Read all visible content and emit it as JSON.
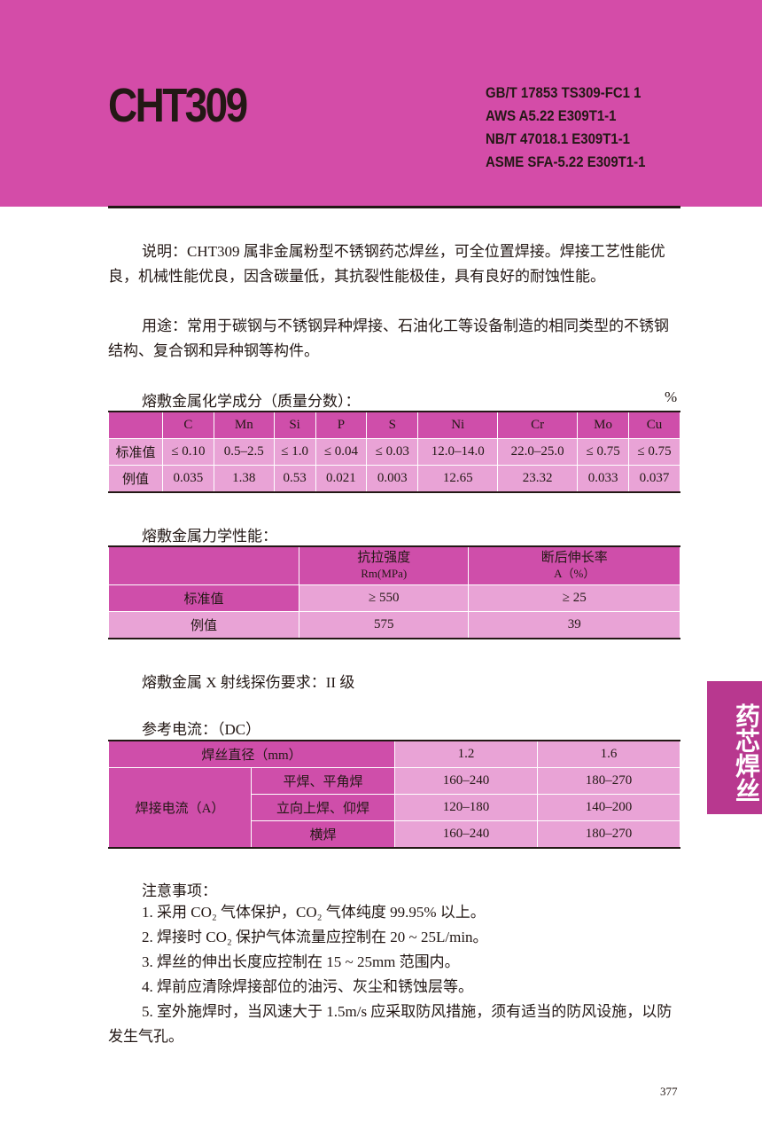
{
  "header": {
    "title": "CHT309",
    "standards": [
      "GB/T 17853 TS309-FC1 1",
      "AWS A5.22 E309T1-1",
      "NB/T 47018.1 E309T1-1",
      "ASME SFA-5.22 E309T1-1"
    ]
  },
  "description": {
    "label": "说明：",
    "text": "CHT309 属非金属粉型不锈钢药芯焊丝，可全位置焊接。焊接工艺性能优良，机械性能优良，因含碳量低，其抗裂性能极佳，具有良好的耐蚀性能。"
  },
  "usage": {
    "label": "用途：",
    "text": "常用于碳钢与不锈钢异种焊接、石油化工等设备制造的相同类型的不锈钢结构、复合钢和异种钢等构件。"
  },
  "chem": {
    "title": "熔敷金属化学成分（质量分数）：",
    "unit": "%",
    "headers": [
      "",
      "C",
      "Mn",
      "Si",
      "P",
      "S",
      "Ni",
      "Cr",
      "Mo",
      "Cu"
    ],
    "rows": [
      [
        "标准值",
        "≤ 0.10",
        "0.5–2.5",
        "≤ 1.0",
        "≤ 0.04",
        "≤ 0.03",
        "12.0–14.0",
        "22.0–25.0",
        "≤ 0.75",
        "≤ 0.75"
      ],
      [
        "例值",
        "0.035",
        "1.38",
        "0.53",
        "0.021",
        "0.003",
        "12.65",
        "23.32",
        "0.033",
        "0.037"
      ]
    ]
  },
  "mech": {
    "title": "熔敷金属力学性能：",
    "headers": [
      [
        "抗拉强度",
        "Rm(MPa)"
      ],
      [
        "断后伸长率",
        "A（%）"
      ]
    ],
    "rows": [
      [
        "标准值",
        "≥ 550",
        "≥ 25"
      ],
      [
        "例值",
        "575",
        "39"
      ]
    ]
  },
  "xray": "熔敷金属 X 射线探伤要求：II 级",
  "current": {
    "title": "参考电流：（DC）",
    "diameter_label": "焊丝直径（mm）",
    "diameters": [
      "1.2",
      "1.6"
    ],
    "current_label": "焊接电流（A）",
    "rows": [
      [
        "平焊、平角焊",
        "160–240",
        "180–270"
      ],
      [
        "立向上焊、仰焊",
        "120–180",
        "140–200"
      ],
      [
        "横焊",
        "160–240",
        "180–270"
      ]
    ]
  },
  "notes": {
    "title": "注意事项：",
    "items": [
      "1. 采用 CO₂ 气体保护，CO₂ 气体纯度 99.95% 以上。",
      "2. 焊接时 CO₂ 保护气体流量应控制在 20 ~ 25L/min。",
      "3. 焊丝的伸出长度应控制在 15 ~ 25mm 范围内。",
      "4. 焊前应清除焊接部位的油污、灰尘和锈蚀层等。",
      "5. 室外施焊时，当风速大于 1.5m/s 应采取防风措施，须有适当的防风设施，以防发生气孔。"
    ]
  },
  "side_tab": "药芯焊丝",
  "page_number": "377",
  "colors": {
    "band": "#d44ca8",
    "header_cell": "#cf4eaa",
    "light_cell": "#e9a3d6",
    "side_tab": "#b8388f"
  }
}
